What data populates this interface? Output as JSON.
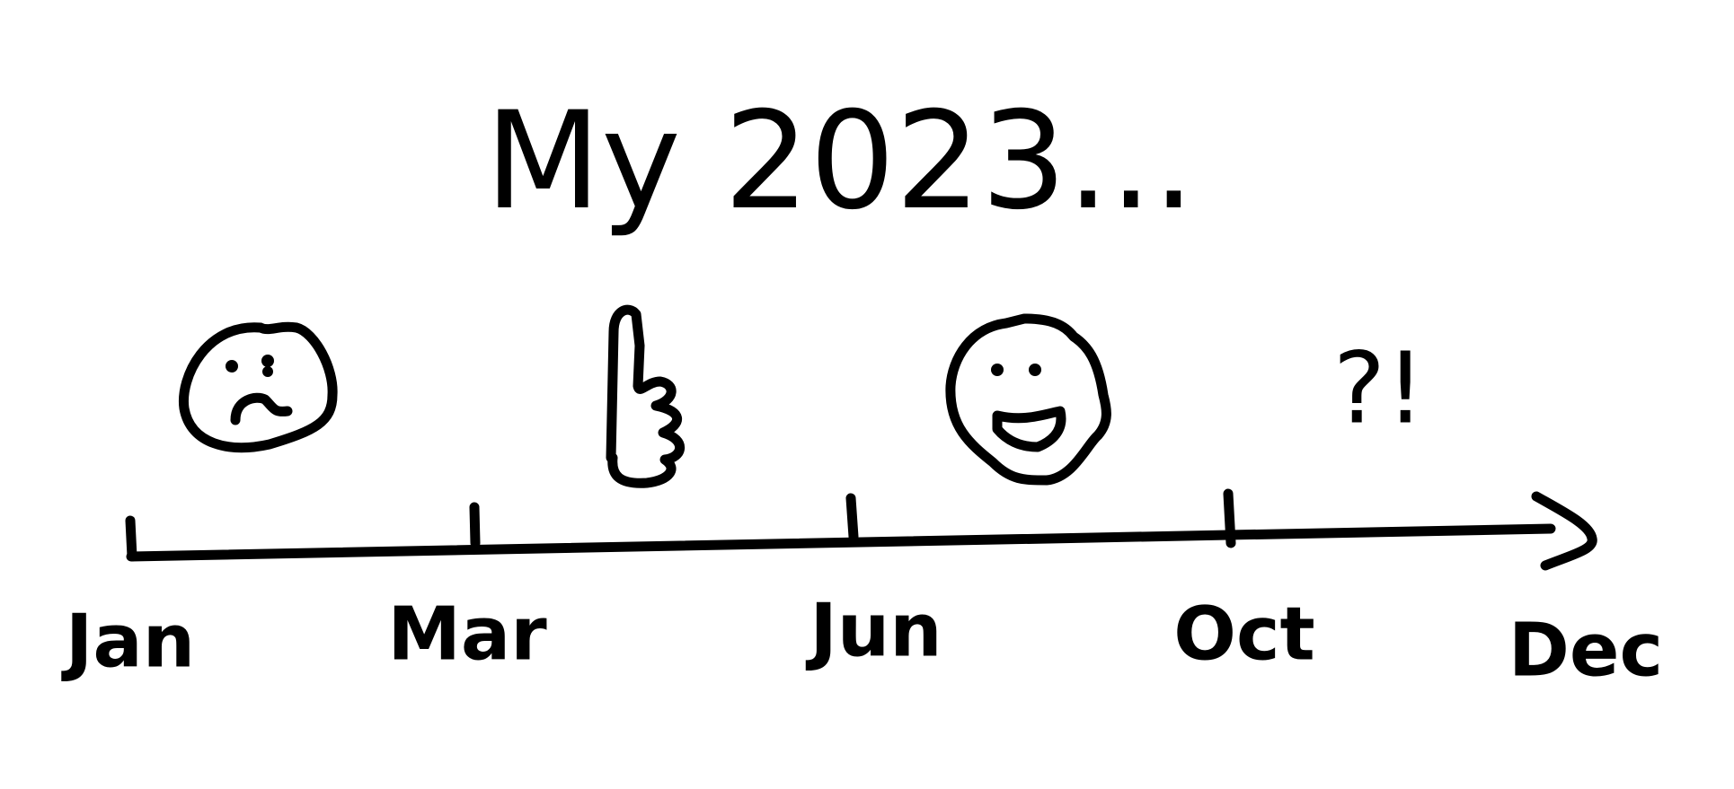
{
  "title": "My 2023...",
  "timeline": {
    "labels": [
      "Jan",
      "Mar",
      "Jun",
      "Oct",
      "Dec"
    ]
  },
  "annotation": "?!"
}
